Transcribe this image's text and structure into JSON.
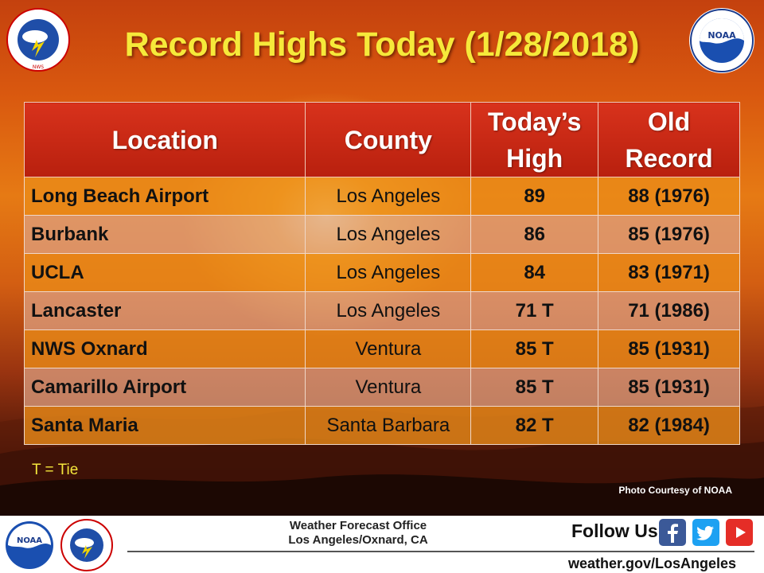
{
  "title": "Record Highs Today (1/28/2018)",
  "table": {
    "headers": {
      "location": "Location",
      "county": "County",
      "todays_high_line1": "Today’s",
      "todays_high_line2": "High",
      "old_record_line1": "Old",
      "old_record_line2": "Record"
    },
    "rows": [
      {
        "location": "Long Beach Airport",
        "county": "Los Angeles",
        "todays_high": "89",
        "old_record": "88 (1976)"
      },
      {
        "location": "Burbank",
        "county": "Los Angeles",
        "todays_high": "86",
        "old_record": "85 (1976)"
      },
      {
        "location": "UCLA",
        "county": "Los Angeles",
        "todays_high": "84",
        "old_record": "83 (1971)"
      },
      {
        "location": "Lancaster",
        "county": "Los Angeles",
        "todays_high": "71 T",
        "old_record": "71 (1986)"
      },
      {
        "location": "NWS Oxnard",
        "county": "Ventura",
        "todays_high": "85 T",
        "old_record": "85 (1931)"
      },
      {
        "location": "Camarillo Airport",
        "county": "Ventura",
        "todays_high": "85 T",
        "old_record": "85 (1931)"
      },
      {
        "location": "Santa Maria",
        "county": "Santa Barbara",
        "todays_high": "82 T",
        "old_record": "82 (1984)"
      }
    ]
  },
  "tie_note": "T = Tie",
  "photo_credit": "Photo Courtesy  of NOAA",
  "footer": {
    "office_line1": "Weather Forecast Office",
    "office_line2": "Los Angeles/Oxnard, CA",
    "follow_us": "Follow Us:",
    "website": "weather.gov/LosAngeles",
    "social_icons": [
      "facebook-icon",
      "twitter-icon",
      "youtube-icon"
    ]
  },
  "logos": {
    "nws": "NATIONAL WEATHER SERVICE",
    "noaa": "NOAA"
  },
  "colors": {
    "title": "#f6e93a",
    "header_bg": "#c62a14",
    "row_odd": "#ea8c18",
    "row_even": "#dea284"
  }
}
